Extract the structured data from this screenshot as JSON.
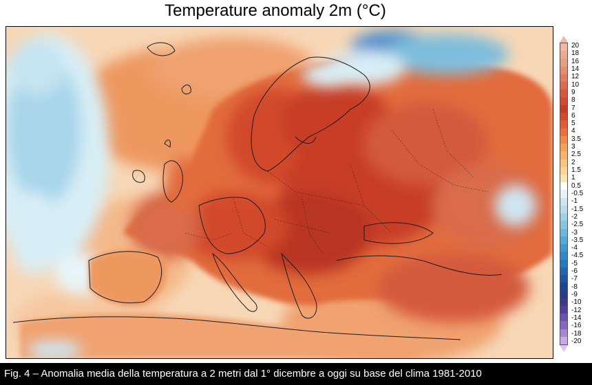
{
  "title": "Temperature anomaly 2m (°C)",
  "caption": "Fig. 4 – Anomalia media della temperatura a 2 metri dal 1° dicembre a oggi su base del clima 1981-2010",
  "colorbar": {
    "labels": [
      "20",
      "18",
      "16",
      "14",
      "12",
      "10",
      "9",
      "8",
      "7",
      "6",
      "5",
      "4",
      "3.5",
      "3",
      "2.5",
      "2",
      "1.5",
      "1",
      "0.5",
      "-0.5",
      "-1",
      "-1.5",
      "-2",
      "-2.5",
      "-3",
      "-3.5",
      "-4",
      "-4.5",
      "-5",
      "-6",
      "-7",
      "-8",
      "-9",
      "-10",
      "-12",
      "-14",
      "-16",
      "-18",
      "-20"
    ],
    "colors": [
      "#f0b8a0",
      "#ebaa90",
      "#e89c80",
      "#e48e70",
      "#de7e60",
      "#d86c4c",
      "#d45a3c",
      "#cf4a30",
      "#c73c28",
      "#d44a2c",
      "#e05c34",
      "#ea7040",
      "#f08a4a",
      "#f4a05a",
      "#f6b46c",
      "#f8c47e",
      "#f9d496",
      "#fae4b4",
      "#ffffff",
      "#e6f2f8",
      "#cfe6f2",
      "#b8dced",
      "#9fd0e8",
      "#86c4e2",
      "#6db6dc",
      "#56a8d6",
      "#4098cf",
      "#3088c6",
      "#2878bd",
      "#2264b0",
      "#1e54a0",
      "#1c4690",
      "#2a3c86",
      "#3e3a86",
      "#52409a",
      "#6a52ae",
      "#8668c0",
      "#a688d2",
      "#c8aae4"
    ],
    "top_cap_color": "#f2b8a4",
    "bottom_cap_color": "#d9c7f2"
  },
  "map": {
    "colors": {
      "ocean_base": "#f7d7b6",
      "warm_light": "#f4b98a",
      "warm": "#ee9860",
      "warm_strong": "#e26c3e",
      "hot": "#d14a2c",
      "hottest": "#b83422",
      "cool_light": "#d8eef6",
      "cool": "#a9d6ea",
      "cool_strong": "#7fbddc",
      "cold": "#4f8fcc",
      "border": "#1a1a1a"
    }
  }
}
